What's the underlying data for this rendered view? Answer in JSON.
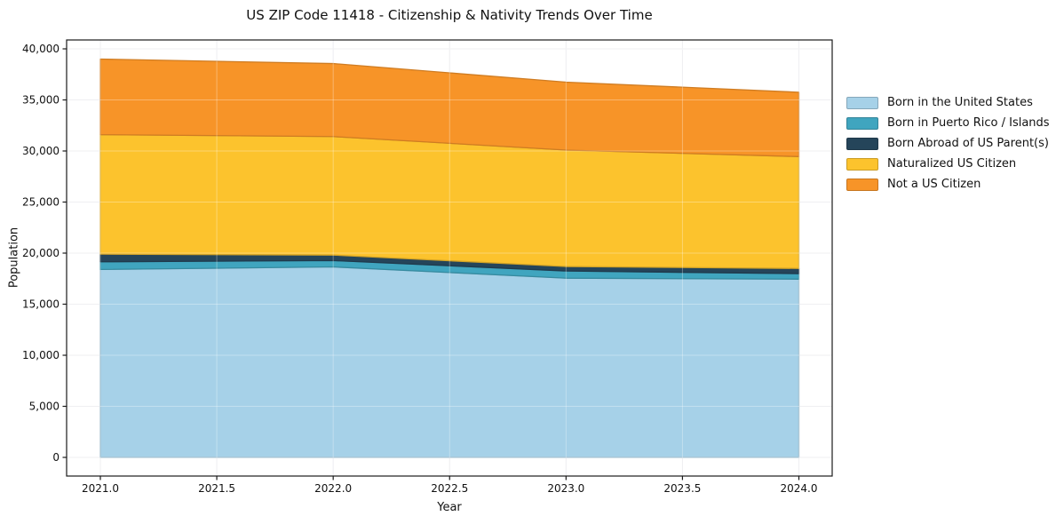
{
  "chart_data": {
    "type": "area",
    "stacked": true,
    "title": "US ZIP Code 11418 - Citizenship & Nativity Trends Over Time",
    "xlabel": "Year",
    "ylabel": "Population",
    "x": [
      2021,
      2022,
      2023,
      2024
    ],
    "series": [
      {
        "name": "Born in the United States",
        "color": "#a6d1e8",
        "values": [
          18400,
          18650,
          17550,
          17450
        ]
      },
      {
        "name": "Born in Puerto Rico / Islands",
        "color": "#40a5bf",
        "values": [
          750,
          620,
          700,
          540
        ]
      },
      {
        "name": "Born Abroad of US Parent(s)",
        "color": "#25455a",
        "values": [
          750,
          540,
          440,
          510
        ]
      },
      {
        "name": "Naturalized US Citizen",
        "color": "#fcc32d",
        "values": [
          11700,
          11600,
          11400,
          10950
        ]
      },
      {
        "name": "Not a US Citizen",
        "color": "#f79428",
        "values": [
          7400,
          7150,
          6650,
          6300
        ]
      }
    ],
    "totals": [
      39000,
      38560,
      36740,
      35750
    ],
    "x_ticks": [
      2021.0,
      2021.5,
      2022.0,
      2022.5,
      2023.0,
      2023.5,
      2024.0
    ],
    "y_ticks": [
      0,
      5000,
      10000,
      15000,
      20000,
      25000,
      30000,
      35000,
      40000
    ],
    "xlim": [
      2021,
      2024
    ],
    "ylim": [
      0,
      40000
    ],
    "grid": true,
    "legend_position": "right-outside"
  }
}
